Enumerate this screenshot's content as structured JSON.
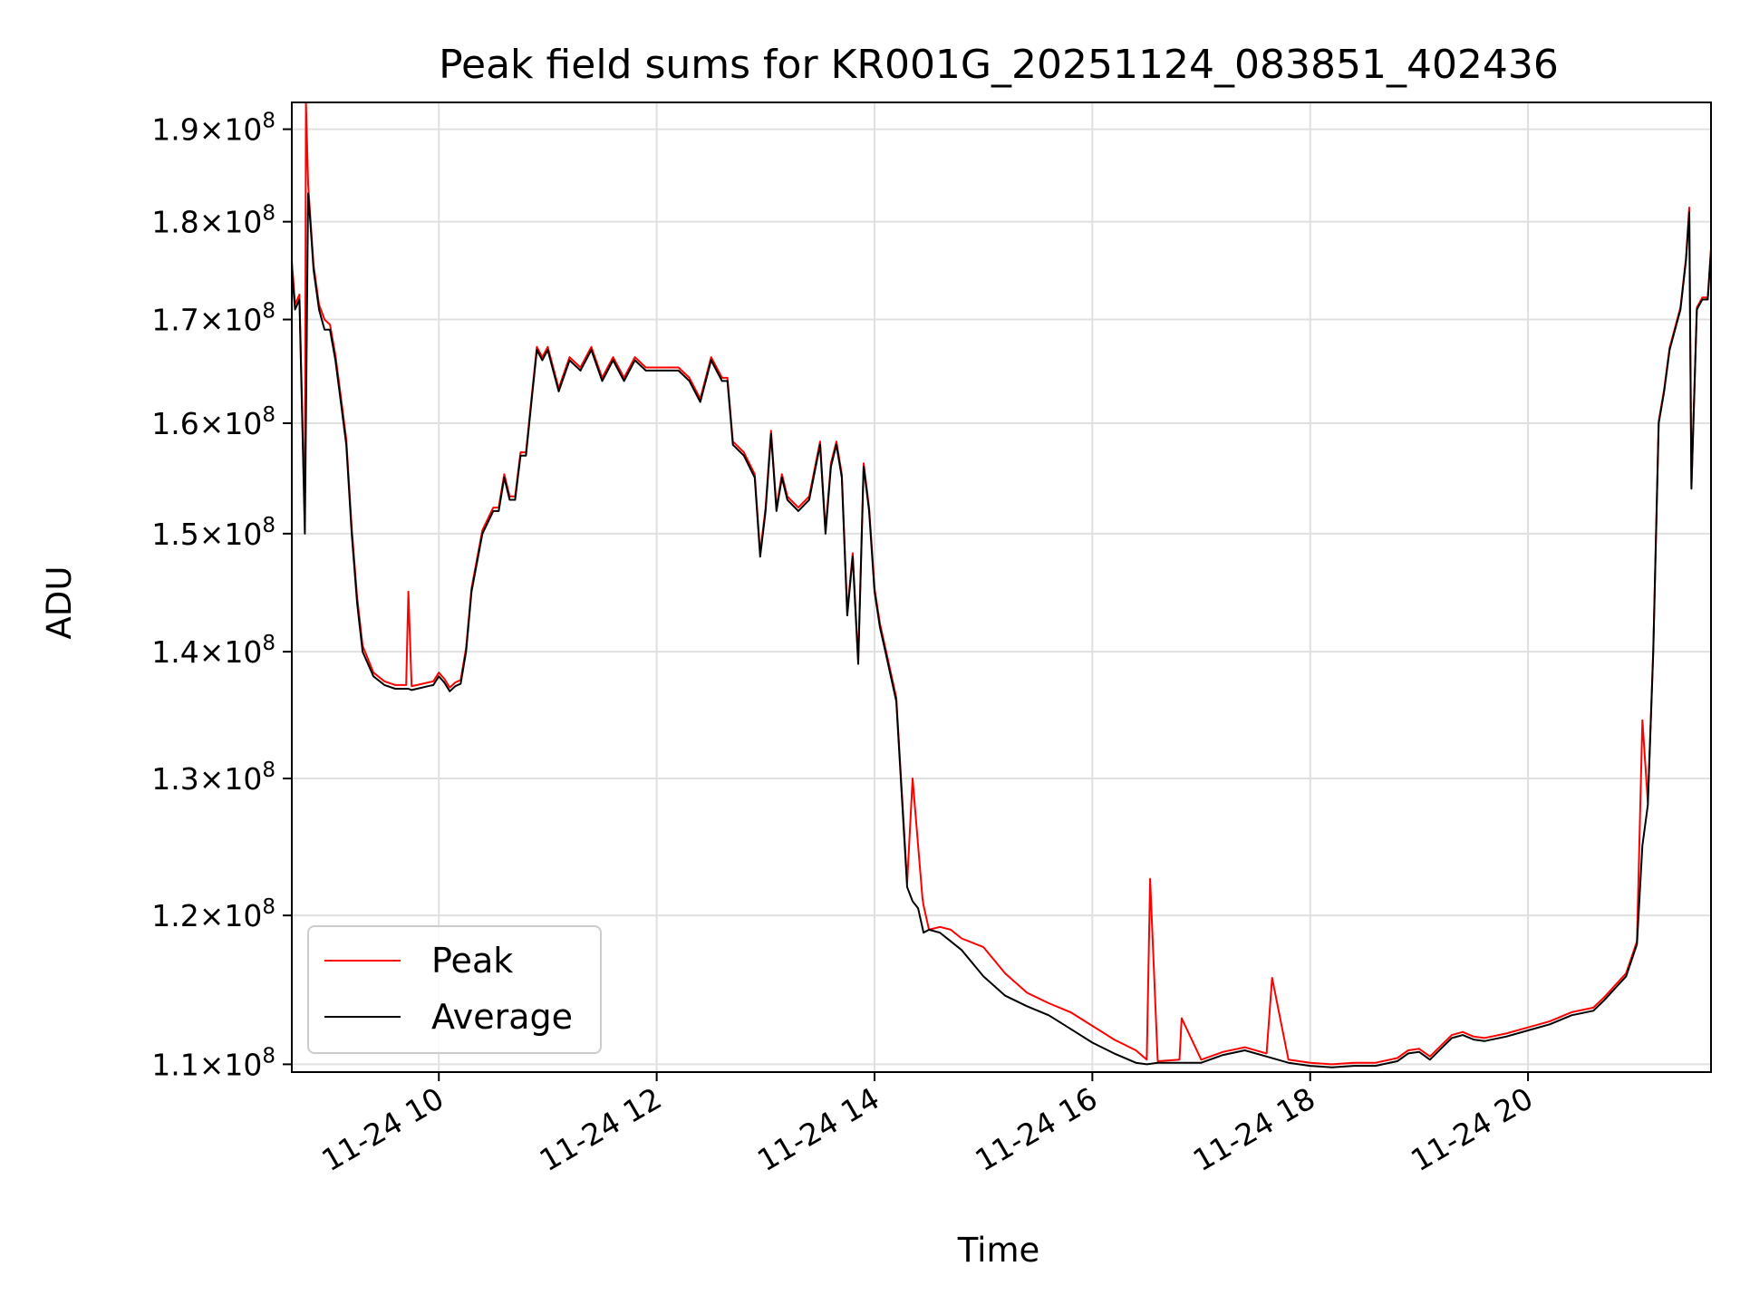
{
  "chart_data": {
    "type": "line",
    "title": "Peak field sums for KR001G_20251124_083851_402436",
    "xlabel": "Time",
    "ylabel": "ADU",
    "yscale": "log",
    "ylim": [
      109500000,
      193000000
    ],
    "xlim_hours": [
      8.65,
      21.68
    ],
    "grid": true,
    "legend_position": "lower-left",
    "colors": {
      "peak": "#ff0000",
      "average": "#000000",
      "grid": "#e0e0e0",
      "axis": "#000000"
    },
    "x_ticks": [
      {
        "hour": 10,
        "label": "11-24 10"
      },
      {
        "hour": 12,
        "label": "11-24 12"
      },
      {
        "hour": 14,
        "label": "11-24 14"
      },
      {
        "hour": 16,
        "label": "11-24 16"
      },
      {
        "hour": 18,
        "label": "11-24 18"
      },
      {
        "hour": 20,
        "label": "11-24 20"
      }
    ],
    "y_ticks": [
      {
        "value": 110000000,
        "mantissa": "1.1",
        "exponent": "8"
      },
      {
        "value": 120000000,
        "mantissa": "1.2",
        "exponent": "8"
      },
      {
        "value": 130000000,
        "mantissa": "1.3",
        "exponent": "8"
      },
      {
        "value": 140000000,
        "mantissa": "1.4",
        "exponent": "8"
      },
      {
        "value": 150000000,
        "mantissa": "1.5",
        "exponent": "8"
      },
      {
        "value": 160000000,
        "mantissa": "1.6",
        "exponent": "8"
      },
      {
        "value": 170000000,
        "mantissa": "1.7",
        "exponent": "8"
      },
      {
        "value": 180000000,
        "mantissa": "1.8",
        "exponent": "8"
      },
      {
        "value": 190000000,
        "mantissa": "1.9",
        "exponent": "8"
      }
    ],
    "tick_mult": "×",
    "tick_base": "10",
    "series": [
      {
        "name": "Average",
        "x_hours": [
          8.65,
          8.68,
          8.72,
          8.77,
          8.8,
          8.82,
          8.85,
          8.9,
          8.95,
          9.0,
          9.05,
          9.1,
          9.15,
          9.2,
          9.25,
          9.3,
          9.4,
          9.5,
          9.6,
          9.7,
          9.72,
          9.75,
          9.8,
          9.85,
          9.9,
          9.95,
          10.0,
          10.05,
          10.1,
          10.15,
          10.2,
          10.25,
          10.3,
          10.4,
          10.5,
          10.55,
          10.6,
          10.65,
          10.7,
          10.75,
          10.8,
          10.85,
          10.9,
          10.95,
          11.0,
          11.1,
          11.2,
          11.3,
          11.4,
          11.5,
          11.6,
          11.7,
          11.8,
          11.9,
          12.0,
          12.1,
          12.2,
          12.3,
          12.4,
          12.5,
          12.6,
          12.65,
          12.7,
          12.8,
          12.9,
          12.95,
          13.0,
          13.05,
          13.1,
          13.15,
          13.2,
          13.3,
          13.4,
          13.5,
          13.55,
          13.6,
          13.65,
          13.7,
          13.75,
          13.8,
          13.85,
          13.9,
          13.95,
          14.0,
          14.05,
          14.1,
          14.2,
          14.3,
          14.35,
          14.4,
          14.45,
          14.5,
          14.6,
          14.7,
          14.8,
          15.0,
          15.2,
          15.4,
          15.6,
          15.8,
          16.0,
          16.2,
          16.4,
          16.5,
          16.6,
          16.8,
          17.0,
          17.2,
          17.4,
          17.6,
          17.8,
          18.0,
          18.2,
          18.4,
          18.6,
          18.8,
          18.9,
          19.0,
          19.1,
          19.2,
          19.3,
          19.4,
          19.5,
          19.6,
          19.8,
          20.0,
          20.2,
          20.4,
          20.6,
          20.7,
          20.8,
          20.9,
          21.0,
          21.05,
          21.1,
          21.15,
          21.2,
          21.25,
          21.3,
          21.4,
          21.45,
          21.48,
          21.5,
          21.55,
          21.6,
          21.65,
          21.68
        ],
        "values": [
          175000000,
          171000000,
          172000000,
          150000000,
          183000000,
          180000000,
          175000000,
          171000000,
          169000000,
          169000000,
          166000000,
          162000000,
          158000000,
          150000000,
          144000000,
          140000000,
          138000000,
          137300000,
          137000000,
          137000000,
          137000000,
          136900000,
          137000000,
          137100000,
          137200000,
          137300000,
          138000000,
          137500000,
          136800000,
          137200000,
          137400000,
          140000000,
          145000000,
          150000000,
          152000000,
          152000000,
          155000000,
          153000000,
          153000000,
          157000000,
          157000000,
          162000000,
          167000000,
          166000000,
          167000000,
          163000000,
          166000000,
          165000000,
          167000000,
          164000000,
          166000000,
          164000000,
          166000000,
          165000000,
          165000000,
          165000000,
          165000000,
          164000000,
          162000000,
          166000000,
          164000000,
          164000000,
          158000000,
          157000000,
          155000000,
          148000000,
          152000000,
          159000000,
          152000000,
          155000000,
          153000000,
          152000000,
          153000000,
          158000000,
          150000000,
          156000000,
          158000000,
          155000000,
          143000000,
          148000000,
          139000000,
          156000000,
          152000000,
          145000000,
          142000000,
          140000000,
          136000000,
          122000000,
          121000000,
          120500000,
          118800000,
          119000000,
          118800000,
          118200000,
          117600000,
          115800000,
          114500000,
          113800000,
          113200000,
          112300000,
          111400000,
          110700000,
          110100000,
          110000000,
          110100000,
          110100000,
          110100000,
          110600000,
          110900000,
          110500000,
          110100000,
          109900000,
          109800000,
          109900000,
          109900000,
          110200000,
          110700000,
          110800000,
          110300000,
          111000000,
          111700000,
          111900000,
          111600000,
          111500000,
          111800000,
          112200000,
          112600000,
          113200000,
          113500000,
          114200000,
          115000000,
          115800000,
          118000000,
          125000000,
          128000000,
          140000000,
          160000000,
          163000000,
          167000000,
          171000000,
          176000000,
          181000000,
          154000000,
          171000000,
          172000000,
          172000000,
          177000000
        ]
      },
      {
        "name": "Peak",
        "x_hours": [
          8.65,
          8.68,
          8.72,
          8.77,
          8.78,
          8.8,
          8.82,
          8.85,
          8.9,
          8.95,
          9.0,
          9.05,
          9.1,
          9.15,
          9.2,
          9.25,
          9.3,
          9.4,
          9.5,
          9.6,
          9.7,
          9.72,
          9.75,
          9.8,
          9.85,
          9.9,
          9.95,
          10.0,
          10.05,
          10.1,
          10.15,
          10.2,
          10.25,
          10.3,
          10.4,
          10.5,
          10.55,
          10.6,
          10.65,
          10.7,
          10.75,
          10.8,
          10.85,
          10.9,
          10.95,
          11.0,
          11.1,
          11.2,
          11.3,
          11.4,
          11.5,
          11.6,
          11.7,
          11.8,
          11.9,
          12.0,
          12.1,
          12.2,
          12.3,
          12.4,
          12.5,
          12.6,
          12.65,
          12.7,
          12.8,
          12.9,
          12.95,
          13.0,
          13.05,
          13.1,
          13.15,
          13.2,
          13.3,
          13.4,
          13.5,
          13.55,
          13.6,
          13.65,
          13.7,
          13.75,
          13.8,
          13.85,
          13.9,
          13.95,
          14.0,
          14.05,
          14.1,
          14.2,
          14.3,
          14.35,
          14.44,
          14.45,
          14.5,
          14.6,
          14.7,
          14.8,
          15.0,
          15.2,
          15.4,
          15.6,
          15.8,
          16.0,
          16.2,
          16.4,
          16.5,
          16.53,
          16.6,
          16.8,
          16.82,
          17.0,
          17.2,
          17.4,
          17.6,
          17.65,
          17.8,
          18.0,
          18.2,
          18.4,
          18.6,
          18.8,
          18.9,
          19.0,
          19.1,
          19.2,
          19.3,
          19.4,
          19.5,
          19.6,
          19.8,
          20.0,
          20.2,
          20.4,
          20.6,
          20.7,
          20.8,
          20.9,
          21.0,
          21.05,
          21.1,
          21.15,
          21.2,
          21.25,
          21.3,
          21.4,
          21.45,
          21.48,
          21.5,
          21.55,
          21.6,
          21.65,
          21.68
        ],
        "values": [
          176000000,
          171500000,
          172500000,
          151000000,
          193000000,
          184000000,
          180500000,
          175500000,
          171500000,
          170000000,
          169500000,
          166500000,
          162500000,
          158500000,
          150500000,
          144500000,
          140500000,
          138300000,
          137600000,
          137300000,
          137300000,
          145000000,
          137200000,
          137300000,
          137400000,
          137500000,
          137600000,
          138300000,
          137800000,
          137100000,
          137500000,
          137700000,
          140300000,
          145300000,
          150300000,
          152300000,
          152300000,
          155300000,
          153300000,
          153300000,
          157300000,
          157300000,
          162300000,
          167300000,
          166300000,
          167300000,
          163300000,
          166300000,
          165300000,
          167300000,
          164300000,
          166300000,
          164300000,
          166300000,
          165300000,
          165300000,
          165300000,
          165300000,
          164300000,
          162300000,
          166300000,
          164300000,
          164300000,
          158300000,
          157300000,
          155300000,
          148300000,
          152300000,
          159300000,
          152300000,
          155300000,
          153300000,
          152300000,
          153300000,
          158300000,
          150300000,
          156300000,
          158300000,
          155300000,
          143300000,
          148300000,
          139300000,
          156300000,
          152300000,
          145300000,
          142300000,
          140300000,
          136300000,
          122300000,
          130000000,
          121200000,
          120700000,
          119000000,
          119200000,
          119000000,
          118400000,
          117800000,
          116000000,
          114700000,
          114000000,
          113400000,
          112500000,
          111600000,
          110900000,
          110300000,
          122600000,
          110200000,
          110300000,
          113000000,
          110300000,
          110800000,
          111100000,
          110700000,
          115700000,
          110300000,
          110100000,
          110000000,
          110100000,
          110100000,
          110400000,
          110900000,
          111000000,
          110500000,
          111200000,
          111900000,
          112100000,
          111800000,
          111700000,
          112000000,
          112400000,
          112800000,
          113400000,
          113700000,
          114400000,
          115200000,
          116000000,
          118200000,
          134500000,
          128200000,
          140200000,
          160200000,
          163200000,
          167200000,
          171200000,
          176200000,
          181500000,
          154200000,
          171200000,
          172200000,
          172200000,
          177200000
        ]
      }
    ],
    "legend": [
      {
        "name": "Peak",
        "color": "#ff0000"
      },
      {
        "name": "Average",
        "color": "#000000"
      }
    ]
  }
}
